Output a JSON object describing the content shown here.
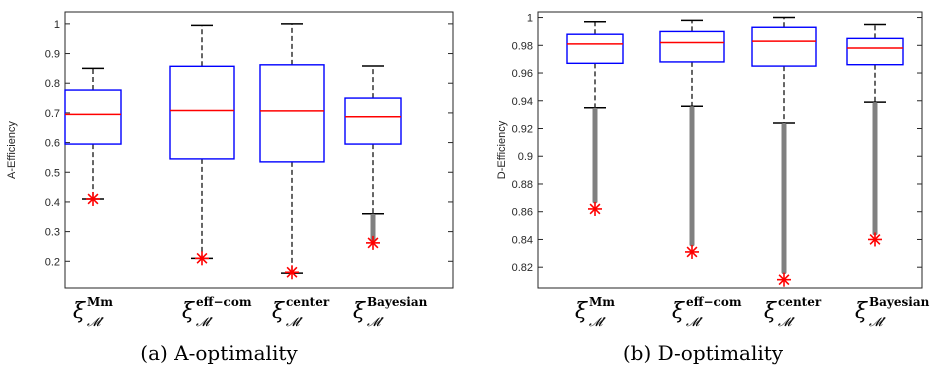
{
  "chart_data": [
    {
      "type": "box",
      "caption": "(a) A-optimality",
      "ylabel": "A-Efficiency",
      "ylim": [
        0.11,
        1.04
      ],
      "yticks": [
        0.2,
        0.3,
        0.4,
        0.5,
        0.6,
        0.7,
        0.8,
        0.9,
        1
      ],
      "ytick_labels": [
        "0.2",
        "0.3",
        "0.4",
        "0.5",
        "0.6",
        "0.7",
        "0.8",
        "0.9",
        "1"
      ],
      "categories": [
        {
          "main": "ξ",
          "sup": "Mm",
          "sub": "𝓜′"
        },
        {
          "main": "ξ",
          "sup": "eff−com",
          "sub": "𝓜′"
        },
        {
          "main": "ξ",
          "sup": "center",
          "sub": "𝓜′"
        },
        {
          "main": "ξ",
          "sup": "Bayesian",
          "sub": "𝓜′"
        }
      ],
      "boxes": [
        {
          "whisker_low": 0.41,
          "q1": 0.595,
          "median": 0.695,
          "q3": 0.777,
          "whisker_high": 0.85,
          "outliers_from": null,
          "outliers_to": null,
          "marker": 0.41
        },
        {
          "whisker_low": 0.21,
          "q1": 0.545,
          "median": 0.708,
          "q3": 0.857,
          "whisker_high": 0.995,
          "outliers_from": null,
          "outliers_to": null,
          "marker": 0.21
        },
        {
          "whisker_low": 0.16,
          "q1": 0.535,
          "median": 0.707,
          "q3": 0.862,
          "whisker_high": 1.0,
          "outliers_from": null,
          "outliers_to": null,
          "marker": 0.163
        },
        {
          "whisker_low": 0.36,
          "q1": 0.595,
          "median": 0.687,
          "q3": 0.75,
          "whisker_high": 0.858,
          "outliers_from": 0.265,
          "outliers_to": 0.36,
          "marker": 0.262
        }
      ]
    },
    {
      "type": "box",
      "caption": "(b) D-optimality",
      "ylabel": "D-Efficiency",
      "ylim": [
        0.805,
        1.004
      ],
      "yticks": [
        0.82,
        0.84,
        0.86,
        0.88,
        0.9,
        0.92,
        0.94,
        0.96,
        0.98,
        1
      ],
      "ytick_labels": [
        "0.82",
        "0.84",
        "0.86",
        "0.88",
        "0.9",
        "0.92",
        "0.94",
        "0.96",
        "0.98",
        "1"
      ],
      "categories": [
        {
          "main": "ξ",
          "sup": "Mm",
          "sub": "𝓜′"
        },
        {
          "main": "ξ",
          "sup": "eff−com",
          "sub": "𝓜′"
        },
        {
          "main": "ξ",
          "sup": "center",
          "sub": "𝓜′"
        },
        {
          "main": "ξ",
          "sup": "Bayesian",
          "sub": "𝓜′"
        }
      ],
      "boxes": [
        {
          "whisker_low": 0.935,
          "q1": 0.967,
          "median": 0.981,
          "q3": 0.988,
          "whisker_high": 0.997,
          "outliers_from": 0.866,
          "outliers_to": 0.935,
          "marker": 0.862
        },
        {
          "whisker_low": 0.936,
          "q1": 0.968,
          "median": 0.982,
          "q3": 0.99,
          "whisker_high": 0.998,
          "outliers_from": 0.835,
          "outliers_to": 0.936,
          "marker": 0.831
        },
        {
          "whisker_low": 0.924,
          "q1": 0.965,
          "median": 0.983,
          "q3": 0.993,
          "whisker_high": 1.0,
          "outliers_from": 0.815,
          "outliers_to": 0.924,
          "marker": 0.811
        },
        {
          "whisker_low": 0.939,
          "q1": 0.966,
          "median": 0.978,
          "q3": 0.985,
          "whisker_high": 0.995,
          "outliers_from": 0.843,
          "outliers_to": 0.939,
          "marker": 0.84
        }
      ]
    }
  ],
  "colors": {
    "box": "#0000ff",
    "median": "#ff0000",
    "whisker": "#000000",
    "outliers": "#808080",
    "marker": "#ff0000",
    "axis": "#262626"
  }
}
